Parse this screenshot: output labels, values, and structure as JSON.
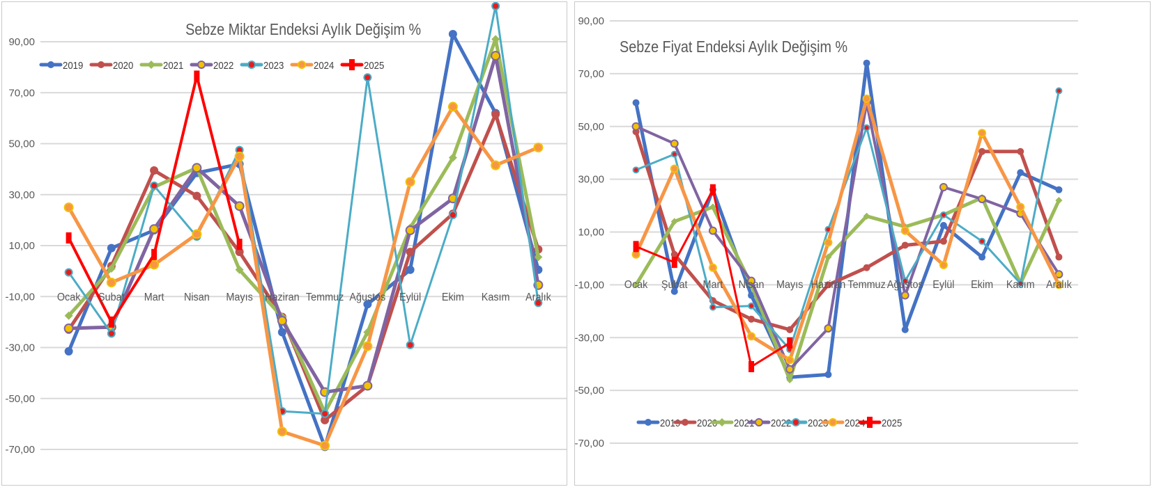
{
  "chart_data": [
    {
      "type": "line",
      "title": "Sebze Miktar Endeksi Aylık Değişim %",
      "xlabel": "",
      "ylabel": "",
      "categories": [
        "Ocak",
        "Şubat",
        "Mart",
        "Nisan",
        "Mayıs",
        "Haziran",
        "Temmuz",
        "Ağustos",
        "Eylül",
        "Ekim",
        "Kasım",
        "Aralık"
      ],
      "ylim": [
        -70,
        100
      ],
      "yticks": [
        -70,
        -50,
        -30,
        -10,
        10,
        30,
        50,
        70,
        90
      ],
      "ytick_labels": [
        "-70,00",
        "-50,00",
        "-30,00",
        "-10,00",
        "10,00",
        "30,00",
        "50,00",
        "70,00",
        "90,00"
      ],
      "grid": true,
      "legend_position": "top-left",
      "series": [
        {
          "name": "2019",
          "color": "#4472c4",
          "values": [
            -31.5,
            9,
            16,
            38.5,
            42,
            -24,
            -69,
            -13,
            0.5,
            93,
            62,
            0.5
          ]
        },
        {
          "name": "2020",
          "color": "#c0504d",
          "values": [
            -23,
            2,
            39.5,
            29.5,
            7.5,
            -18,
            -58.5,
            -45,
            7.5,
            22.5,
            61.5,
            8.5
          ]
        },
        {
          "name": "2021",
          "color": "#9bbb59",
          "values": [
            -17.5,
            1,
            33,
            40.5,
            0.5,
            -18,
            -55.5,
            -24,
            17,
            44.5,
            91,
            5.5
          ]
        },
        {
          "name": "2022",
          "color": "#8064a2",
          "values": [
            -22.5,
            -22,
            16.5,
            40.5,
            25.5,
            -19.5,
            -47.5,
            -45,
            16,
            28.5,
            84.5,
            -5.5
          ]
        },
        {
          "name": "2023",
          "color": "#4bacc6",
          "values": [
            -0.5,
            -24.5,
            33.5,
            13.5,
            47.5,
            -55,
            -56,
            76,
            -29,
            22,
            104,
            -12.5
          ]
        },
        {
          "name": "2024",
          "color": "#f79646",
          "values": [
            25,
            -4.5,
            2.5,
            14.5,
            45,
            -63,
            -68.5,
            -29.5,
            35,
            64.5,
            41.5,
            48.5
          ]
        },
        {
          "name": "2025",
          "color": "#ff0000",
          "values": [
            13,
            -20,
            6.5,
            76.5,
            10.5,
            null,
            null,
            null,
            null,
            null,
            null,
            null
          ]
        }
      ]
    },
    {
      "type": "line",
      "title": "Sebze Fiyat Endeksi Aylık Değişim %",
      "xlabel": "",
      "ylabel": "",
      "categories": [
        "Ocak",
        "Şubat",
        "Mart",
        "Nisan",
        "Mayıs",
        "Haziran",
        "Temmuz",
        "Ağustos",
        "Eylül",
        "Ekim",
        "Kasım",
        "Aralık"
      ],
      "ylim": [
        -70,
        90
      ],
      "yticks": [
        -70,
        -50,
        -30,
        -10,
        10,
        30,
        50,
        70,
        90
      ],
      "ytick_labels": [
        "-70,00",
        "-50,00",
        "-30,00",
        "-10,00",
        "10,00",
        "30,00",
        "50,00",
        "70,00",
        "90,00"
      ],
      "grid": true,
      "legend_position": "bottom-center",
      "series": [
        {
          "name": "2019",
          "color": "#4472c4",
          "values": [
            59,
            -12.5,
            26,
            -14,
            -45,
            -44,
            74,
            -27,
            12.5,
            0.5,
            32.5,
            26
          ]
        },
        {
          "name": "2020",
          "color": "#c0504d",
          "values": [
            48,
            1.5,
            -16,
            -23,
            -27,
            -10,
            -3.5,
            5,
            6.5,
            40.5,
            40.5,
            0.5
          ]
        },
        {
          "name": "2021",
          "color": "#9bbb59",
          "values": [
            -10,
            14,
            19.5,
            -10,
            -46,
            0.5,
            16,
            12,
            16.5,
            23,
            -9.5,
            22
          ]
        },
        {
          "name": "2022",
          "color": "#8064a2",
          "values": [
            50,
            43.5,
            10.5,
            -8.5,
            -42,
            -26.5,
            59,
            -14,
            27,
            22.5,
            17,
            -6
          ]
        },
        {
          "name": "2023",
          "color": "#4bacc6",
          "values": [
            33.5,
            39.5,
            -18.5,
            -18,
            -34.5,
            11,
            49.5,
            -8.5,
            16.5,
            6.5,
            -9.5,
            63.5
          ]
        },
        {
          "name": "2024",
          "color": "#f79646",
          "values": [
            1.5,
            34,
            -3.5,
            -29.5,
            -38.5,
            6,
            60.5,
            10.5,
            -2.5,
            47.5,
            19.5,
            -10
          ]
        },
        {
          "name": "2025",
          "color": "#ff0000",
          "values": [
            4.5,
            -1.5,
            26,
            -41,
            -32,
            null,
            null,
            null,
            null,
            null,
            null,
            null
          ]
        }
      ]
    }
  ]
}
